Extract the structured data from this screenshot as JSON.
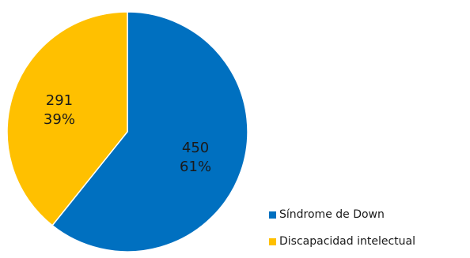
{
  "chart_data": {
    "type": "pie",
    "title": "",
    "slices": [
      {
        "name": "Síndrome de Down",
        "value": 450,
        "percent_label": "61%",
        "color": "#0070C0"
      },
      {
        "name": "Discapacidad intelectual",
        "value": 291,
        "percent_label": "39%",
        "color": "#FFC000"
      }
    ],
    "start": "12 o'clock",
    "direction": "clockwise",
    "legend_position": "bottom-right",
    "slice_border_color": "#ffffff"
  }
}
